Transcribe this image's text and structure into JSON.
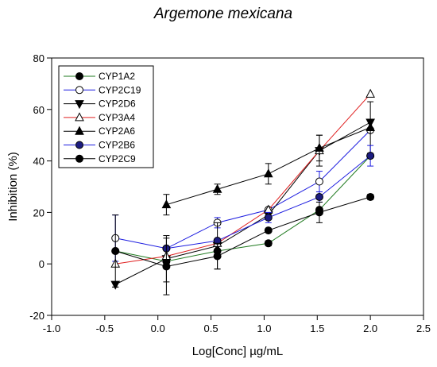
{
  "chart_data": {
    "type": "line",
    "title": "Argemone mexicana",
    "xlabel": "Log[Conc] µg/mL",
    "ylabel": "Inhibition (%)",
    "xlim": [
      -1.0,
      2.5
    ],
    "ylim": [
      -20,
      80
    ],
    "xticks": [
      "-1.0",
      "-0.5",
      "0.0",
      "0.5",
      "1.0",
      "1.5",
      "2.0",
      "2.5"
    ],
    "yticks": [
      "-20",
      "0",
      "20",
      "40",
      "60",
      "80"
    ],
    "x": [
      -0.4,
      0.08,
      0.56,
      1.04,
      1.52,
      2.0
    ],
    "legend_position": "top-left",
    "series": [
      {
        "name": "CYP1A2",
        "marker": "circle-filled",
        "color": "#1f7a1f",
        "marker_fill": "#000000",
        "values": [
          5,
          1,
          5,
          8,
          21,
          42
        ],
        "errors": [
          0,
          0,
          0,
          1,
          0,
          0
        ]
      },
      {
        "name": "CYP2C19",
        "marker": "circle-open",
        "color": "#1c1ce0",
        "marker_fill": "#ffffff",
        "values": [
          10,
          6,
          16,
          21,
          32,
          52
        ],
        "errors": [
          9,
          0,
          2,
          0,
          4,
          0
        ]
      },
      {
        "name": "CYP2D6",
        "marker": "triangle-down",
        "color": "#000000",
        "marker_fill": "#000000",
        "values": [
          -8,
          2,
          7,
          19,
          44,
          55
        ],
        "errors": [
          1,
          9,
          9,
          0,
          6,
          0
        ]
      },
      {
        "name": "CYP3A4",
        "marker": "triangle-up-open",
        "color": "#e02020",
        "marker_fill": "#ffffff",
        "values": [
          0,
          3,
          8,
          21,
          44,
          66
        ],
        "errors": [
          0,
          0,
          0,
          0,
          0,
          0
        ]
      },
      {
        "name": "CYP2A6",
        "marker": "triangle-up",
        "color": "#000000",
        "marker_fill": "#000000",
        "values": [
          null,
          23,
          29,
          35,
          45,
          53
        ],
        "errors": [
          0,
          4,
          2,
          4,
          5,
          10
        ]
      },
      {
        "name": "CYP2B6",
        "marker": "circle-filled",
        "color": "#1c1ce0",
        "marker_fill": "#1c1c80",
        "values": [
          null,
          6,
          9,
          18,
          26,
          42
        ],
        "errors": [
          0,
          0,
          0,
          2,
          2,
          4
        ]
      },
      {
        "name": "CYP2C9",
        "marker": "circle-filled",
        "color": "#000000",
        "marker_fill": "#000000",
        "values": [
          5,
          -1,
          3,
          13,
          20,
          26
        ],
        "errors": [
          14,
          11,
          5,
          0,
          4,
          1
        ]
      }
    ]
  }
}
